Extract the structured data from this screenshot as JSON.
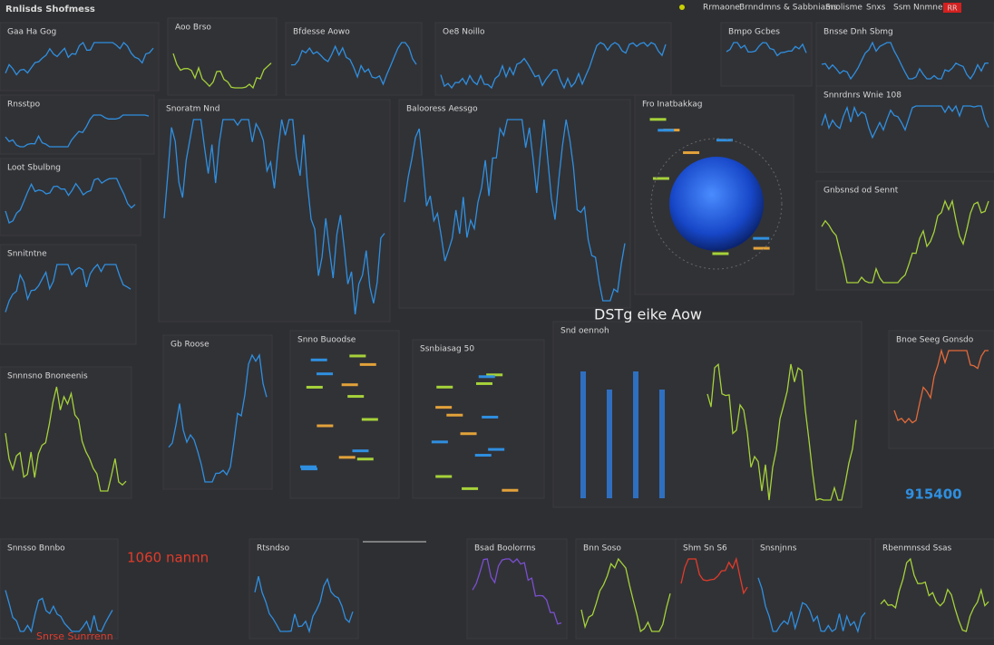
{
  "header": {
    "title": "Rnlisds Shofmess",
    "menu": [
      "Rrmaone",
      "Brnndmns & Sabbniams",
      "Snolisme",
      "Snxs",
      "Ssm Nnmnens"
    ],
    "button": "RR"
  },
  "panels": [
    "Gaa Ha Gog",
    "Aoo Brso",
    "Bfdesse Aowo",
    "Oe8 Noillo",
    "Bmpo Gcbes",
    "Bnsse Dnh Sbmg",
    "Rnsstpo",
    "Snoratm Nnd",
    "Balooress Aessgo",
    "Fro Inatbakkag",
    "Snnrdnrs Wnie 108",
    "Loot Sbulbng",
    "Gnbsnsd od Sennt",
    "Snnitntne",
    "Gb Roose",
    "Snno Buoodse",
    "Ssnbiasag 50",
    "Snd oennoh",
    "Bnoe Seeg Gonsdo",
    "Snnnsno Bnoneenis",
    "Snnsso Bnnbo",
    "Rtsndso",
    "Bsad Boolorrns",
    "Bnn Soso",
    "Shm Sn S6",
    "Snsnjnns",
    "Rbenmnssd Ssas"
  ],
  "big_label": "DSTg eike Aow",
  "kpis": [
    "1060 nannn",
    "915400",
    "Snrse Sunrrenn"
  ]
}
